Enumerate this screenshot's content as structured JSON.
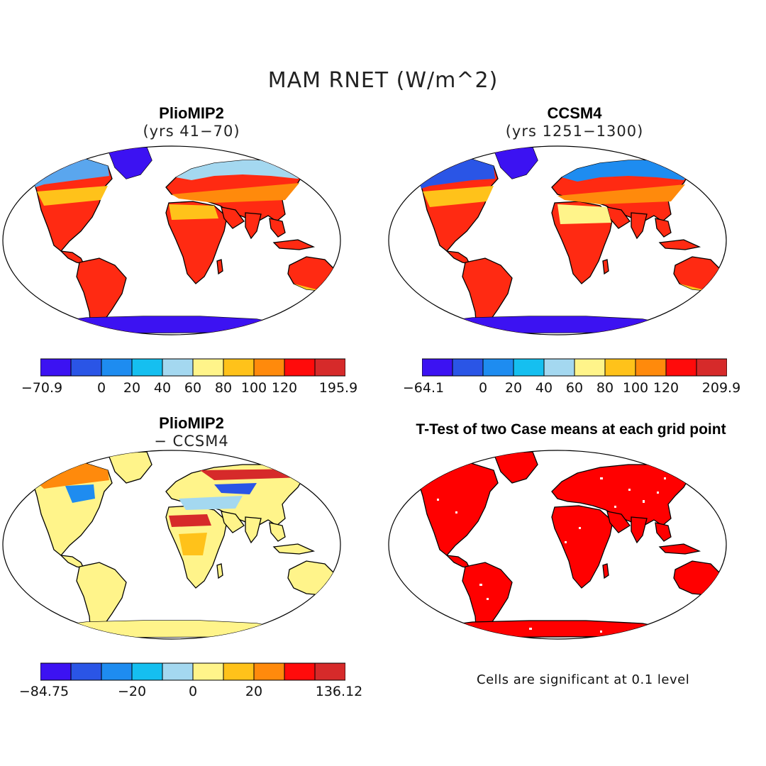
{
  "main_title": "MAM RNET (W/m^2)",
  "panels": {
    "top_left": {
      "title": "PlioMIP2",
      "subtitle": "(yrs 41−70)"
    },
    "top_right": {
      "title": "CCSM4",
      "subtitle": "(yrs 1251−1300)"
    },
    "bottom_left": {
      "title": "PlioMIP2",
      "subtitle": "− CCSM4"
    },
    "bottom_right": {
      "title": "T-Test of two Case means at each grid point",
      "note": "Cells are significant at 0.1 level"
    }
  },
  "palette": [
    "#3c12f2",
    "#2a55e6",
    "#1e8cf0",
    "#15bff0",
    "#a4d8f0",
    "#fff48a",
    "#ffc21a",
    "#ff8a0c",
    "#ff0b0b",
    "#d62a2a"
  ],
  "significance_color": "#ff0000",
  "colorbars": {
    "top_left": {
      "ticks": [
        "−70.9",
        "0",
        "20",
        "40",
        "60",
        "80",
        "100",
        "120",
        "195.9"
      ]
    },
    "top_right": {
      "ticks": [
        "−64.1",
        "0",
        "20",
        "40",
        "60",
        "80",
        "100",
        "120",
        "209.9"
      ]
    },
    "bottom_left": {
      "ticks": [
        "−84.75",
        "−20",
        "0",
        "20",
        "136.12"
      ]
    }
  }
}
